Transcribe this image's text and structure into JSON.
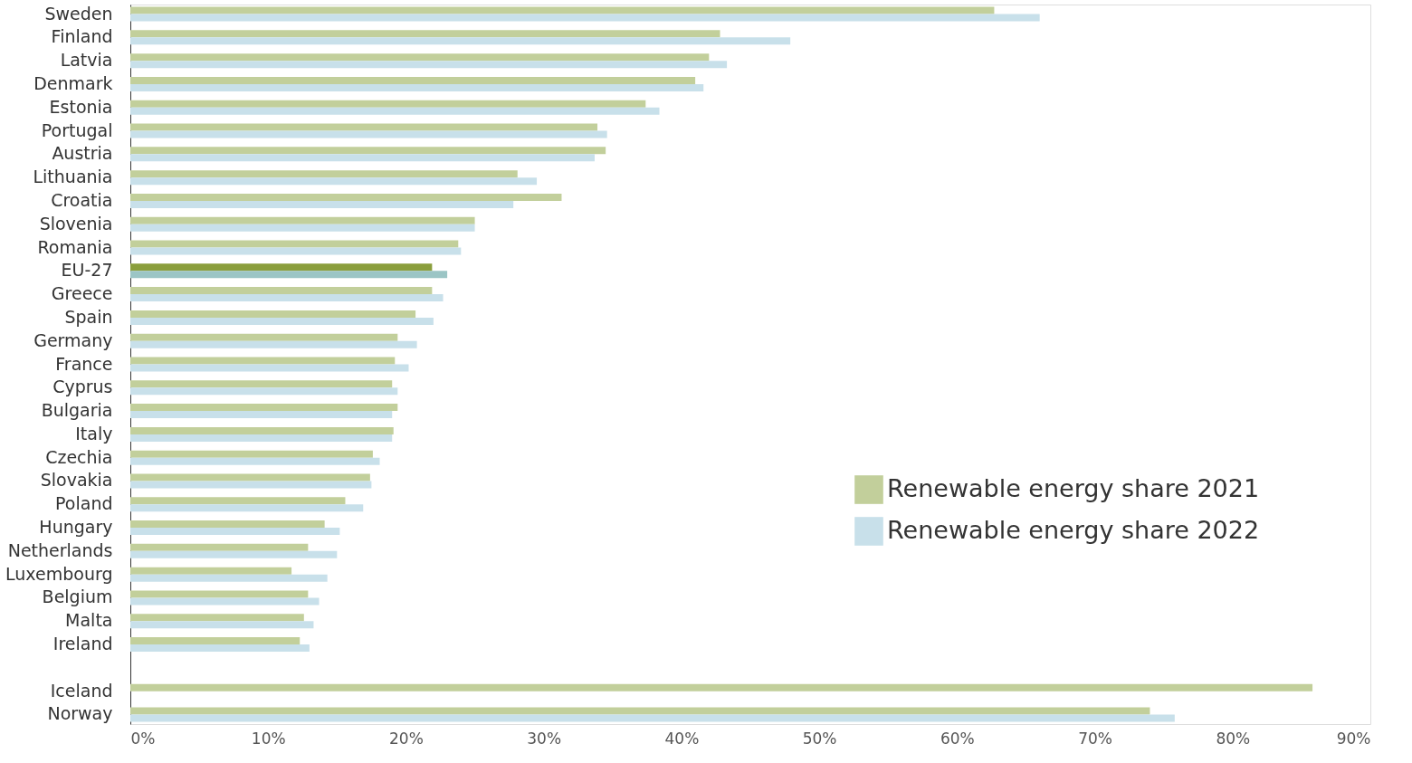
{
  "chart_data": {
    "type": "bar",
    "orientation": "horizontal",
    "categories": [
      "Sweden",
      "Finland",
      "Latvia",
      "Denmark",
      "Estonia",
      "Portugal",
      "Austria",
      "Lithuania",
      "Croatia",
      "Slovenia",
      "Romania",
      "EU-27",
      "Greece",
      "Spain",
      "Germany",
      "France",
      "Cyprus",
      "Bulgaria",
      "Italy",
      "Czechia",
      "Slovakia",
      "Poland",
      "Hungary",
      "Netherlands",
      "Luxembourg",
      "Belgium",
      "Malta",
      "Ireland",
      null,
      "Iceland",
      "Norway"
    ],
    "series": [
      {
        "name": "Renewable energy share 2021",
        "color": "#c2cf9b",
        "values": [
          62.7,
          42.8,
          42.0,
          41.0,
          37.4,
          33.9,
          34.5,
          28.1,
          31.3,
          25.0,
          23.8,
          21.9,
          21.9,
          20.7,
          19.4,
          19.2,
          19.0,
          19.4,
          19.1,
          17.6,
          17.4,
          15.6,
          14.1,
          12.9,
          11.7,
          12.9,
          12.6,
          12.3,
          null,
          85.8,
          74.0
        ],
        "colors": [
          "#c2cf9b",
          "#c2cf9b",
          "#c2cf9b",
          "#c2cf9b",
          "#c2cf9b",
          "#c2cf9b",
          "#c2cf9b",
          "#c2cf9b",
          "#c2cf9b",
          "#c2cf9b",
          "#c2cf9b",
          "#8a9e3c",
          "#c2cf9b",
          "#c2cf9b",
          "#c2cf9b",
          "#c2cf9b",
          "#c2cf9b",
          "#c2cf9b",
          "#c2cf9b",
          "#c2cf9b",
          "#c2cf9b",
          "#c2cf9b",
          "#c2cf9b",
          "#c2cf9b",
          "#c2cf9b",
          "#c2cf9b",
          "#c2cf9b",
          "#c2cf9b",
          "#c2cf9b",
          "#c2cf9b",
          "#c2cf9b"
        ]
      },
      {
        "name": "Renewable energy share 2022",
        "color": "#c8e0ea",
        "values": [
          66.0,
          47.9,
          43.3,
          41.6,
          38.4,
          34.6,
          33.7,
          29.5,
          27.8,
          25.0,
          24.0,
          23.0,
          22.7,
          22.0,
          20.8,
          20.2,
          19.4,
          19.0,
          19.0,
          18.1,
          17.5,
          16.9,
          15.2,
          15.0,
          14.3,
          13.7,
          13.3,
          13.0,
          null,
          null,
          75.8
        ],
        "colors": [
          "#c8e0ea",
          "#c8e0ea",
          "#c8e0ea",
          "#c8e0ea",
          "#c8e0ea",
          "#c8e0ea",
          "#c8e0ea",
          "#c8e0ea",
          "#c8e0ea",
          "#c8e0ea",
          "#c8e0ea",
          "#9bc5c5",
          "#c8e0ea",
          "#c8e0ea",
          "#c8e0ea",
          "#c8e0ea",
          "#c8e0ea",
          "#c8e0ea",
          "#c8e0ea",
          "#c8e0ea",
          "#c8e0ea",
          "#c8e0ea",
          "#c8e0ea",
          "#c8e0ea",
          "#c8e0ea",
          "#c8e0ea",
          "#c8e0ea",
          "#c8e0ea",
          "#c8e0ea",
          "#c8e0ea",
          "#c8e0ea"
        ]
      }
    ],
    "xlim": [
      0,
      90
    ],
    "xticks": [
      {
        "value": 0,
        "label": "0%"
      },
      {
        "value": 10,
        "label": "10%"
      },
      {
        "value": 20,
        "label": "20%"
      },
      {
        "value": 30,
        "label": "30%"
      },
      {
        "value": 40,
        "label": "40%"
      },
      {
        "value": 50,
        "label": "50%"
      },
      {
        "value": 60,
        "label": "60%"
      },
      {
        "value": 70,
        "label": "70%"
      },
      {
        "value": 80,
        "label": "80%"
      },
      {
        "value": 90,
        "label": "90%"
      }
    ],
    "grid": false,
    "legend": "right"
  }
}
